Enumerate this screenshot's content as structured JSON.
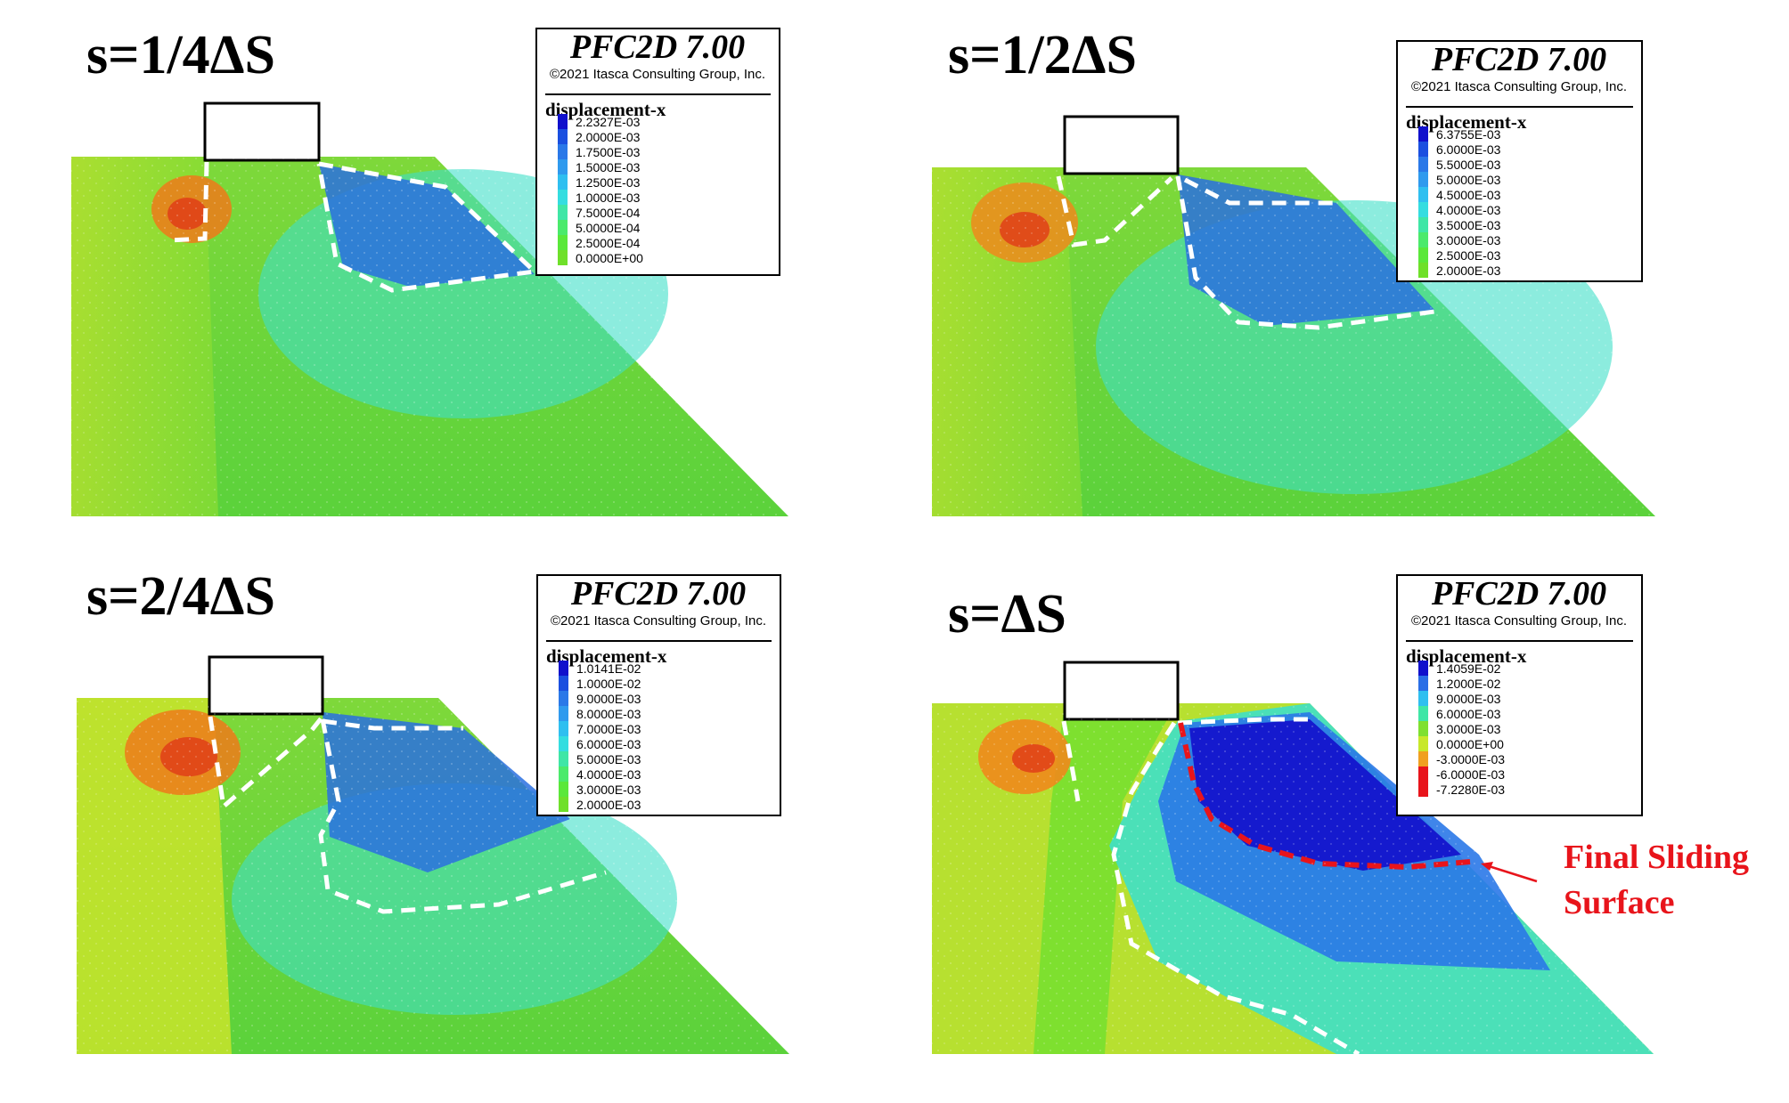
{
  "legend_common": {
    "title": "PFC2D 7.00",
    "copyright": "©2021 Itasca Consulting Group, Inc.",
    "variable": "displacement-x"
  },
  "panels": [
    {
      "label": "s=1/4ΔS",
      "legend_values": [
        "2.2327E-03",
        "2.0000E-03",
        "1.7500E-03",
        "1.5000E-03",
        "1.2500E-03",
        "1.0000E-03",
        "7.5000E-04",
        "5.0000E-04",
        "2.5000E-04",
        "0.0000E+00"
      ],
      "legend_colors": [
        "#1010cc",
        "#1a4fe0",
        "#2a78e8",
        "#2f9aee",
        "#2fbff0",
        "#34dde0",
        "#3fe6a6",
        "#4bea6b",
        "#5ae83a",
        "#6fe02a"
      ]
    },
    {
      "label": "s=1/2ΔS",
      "legend_values": [
        "6.3755E-03",
        "6.0000E-03",
        "5.5000E-03",
        "5.0000E-03",
        "4.5000E-03",
        "4.0000E-03",
        "3.5000E-03",
        "3.0000E-03",
        "2.5000E-03",
        "2.0000E-03"
      ],
      "legend_colors": [
        "#1010cc",
        "#1a4fe0",
        "#2a78e8",
        "#2f9aee",
        "#2fbff0",
        "#34dde0",
        "#3fe6a6",
        "#4bea6b",
        "#5ae83a",
        "#6fe02a"
      ]
    },
    {
      "label": "s=2/4ΔS",
      "legend_values": [
        "1.0141E-02",
        "1.0000E-02",
        "9.0000E-03",
        "8.0000E-03",
        "7.0000E-03",
        "6.0000E-03",
        "5.0000E-03",
        "4.0000E-03",
        "3.0000E-03",
        "2.0000E-03"
      ],
      "legend_colors": [
        "#1010cc",
        "#1a4fe0",
        "#2a78e8",
        "#2f9aee",
        "#2fbff0",
        "#34dde0",
        "#3fe6a6",
        "#4bea6b",
        "#5ae83a",
        "#6fe02a"
      ]
    },
    {
      "label": "s=ΔS",
      "legend_values": [
        "1.4059E-02",
        "1.2000E-02",
        "9.0000E-03",
        "6.0000E-03",
        "3.0000E-03",
        "0.0000E+00",
        "-3.0000E-03",
        "-6.0000E-03",
        "-7.2280E-03"
      ],
      "legend_colors": [
        "#1010cc",
        "#2a6ee6",
        "#2fbff0",
        "#3fe6a6",
        "#7fe030",
        "#c8e82a",
        "#f0a020",
        "#e8141b",
        "#e8141b"
      ]
    }
  ],
  "annotation": {
    "line1": "Final Sliding",
    "line2": "Surface",
    "color": "#e8141b"
  },
  "colors": {
    "background_field": "#7ed83a",
    "dashed_line": "#ffffff",
    "final_surface": "#e8141b"
  }
}
